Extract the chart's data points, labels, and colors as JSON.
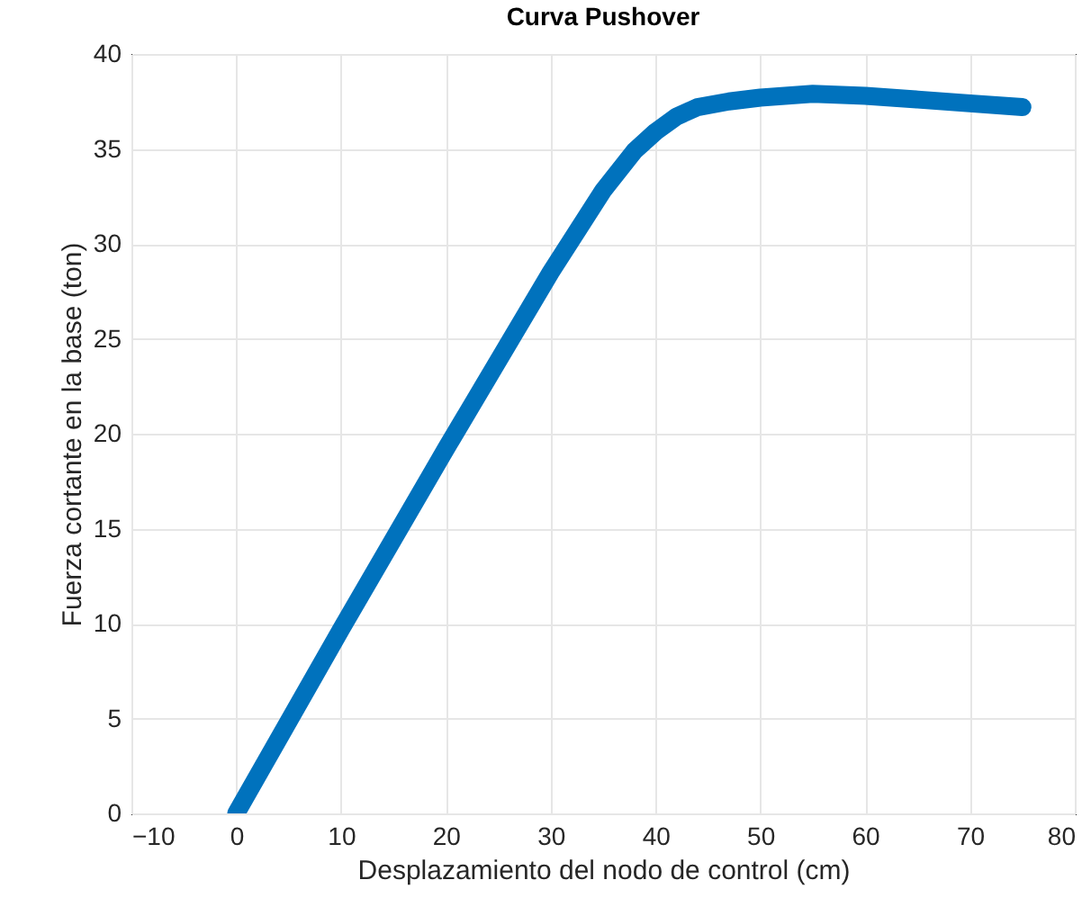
{
  "chart_data": {
    "type": "line",
    "title": "Curva Pushover",
    "xlabel": "Desplazamiento del nodo de control (cm)",
    "ylabel": "Fuerza cortante en la base (ton)",
    "series": [
      {
        "color": "#0072bd",
        "x": [
          0,
          10,
          20,
          30,
          35,
          38,
          40,
          42,
          44,
          47,
          50,
          55,
          60,
          65,
          70,
          75
        ],
        "values": [
          0,
          9.7,
          19.2,
          28.5,
          32.8,
          34.9,
          35.9,
          36.7,
          37.2,
          37.5,
          37.7,
          37.9,
          37.8,
          37.6,
          37.4,
          37.2
        ]
      }
    ],
    "xlim": [
      -10,
      80
    ],
    "xticks": [
      -10,
      0,
      10,
      20,
      30,
      40,
      50,
      60,
      70,
      80
    ],
    "ylim": [
      0,
      40
    ],
    "yticks": [
      0,
      5,
      10,
      15,
      20,
      25,
      30,
      35,
      40
    ],
    "grid": true,
    "line_style": "solid"
  }
}
